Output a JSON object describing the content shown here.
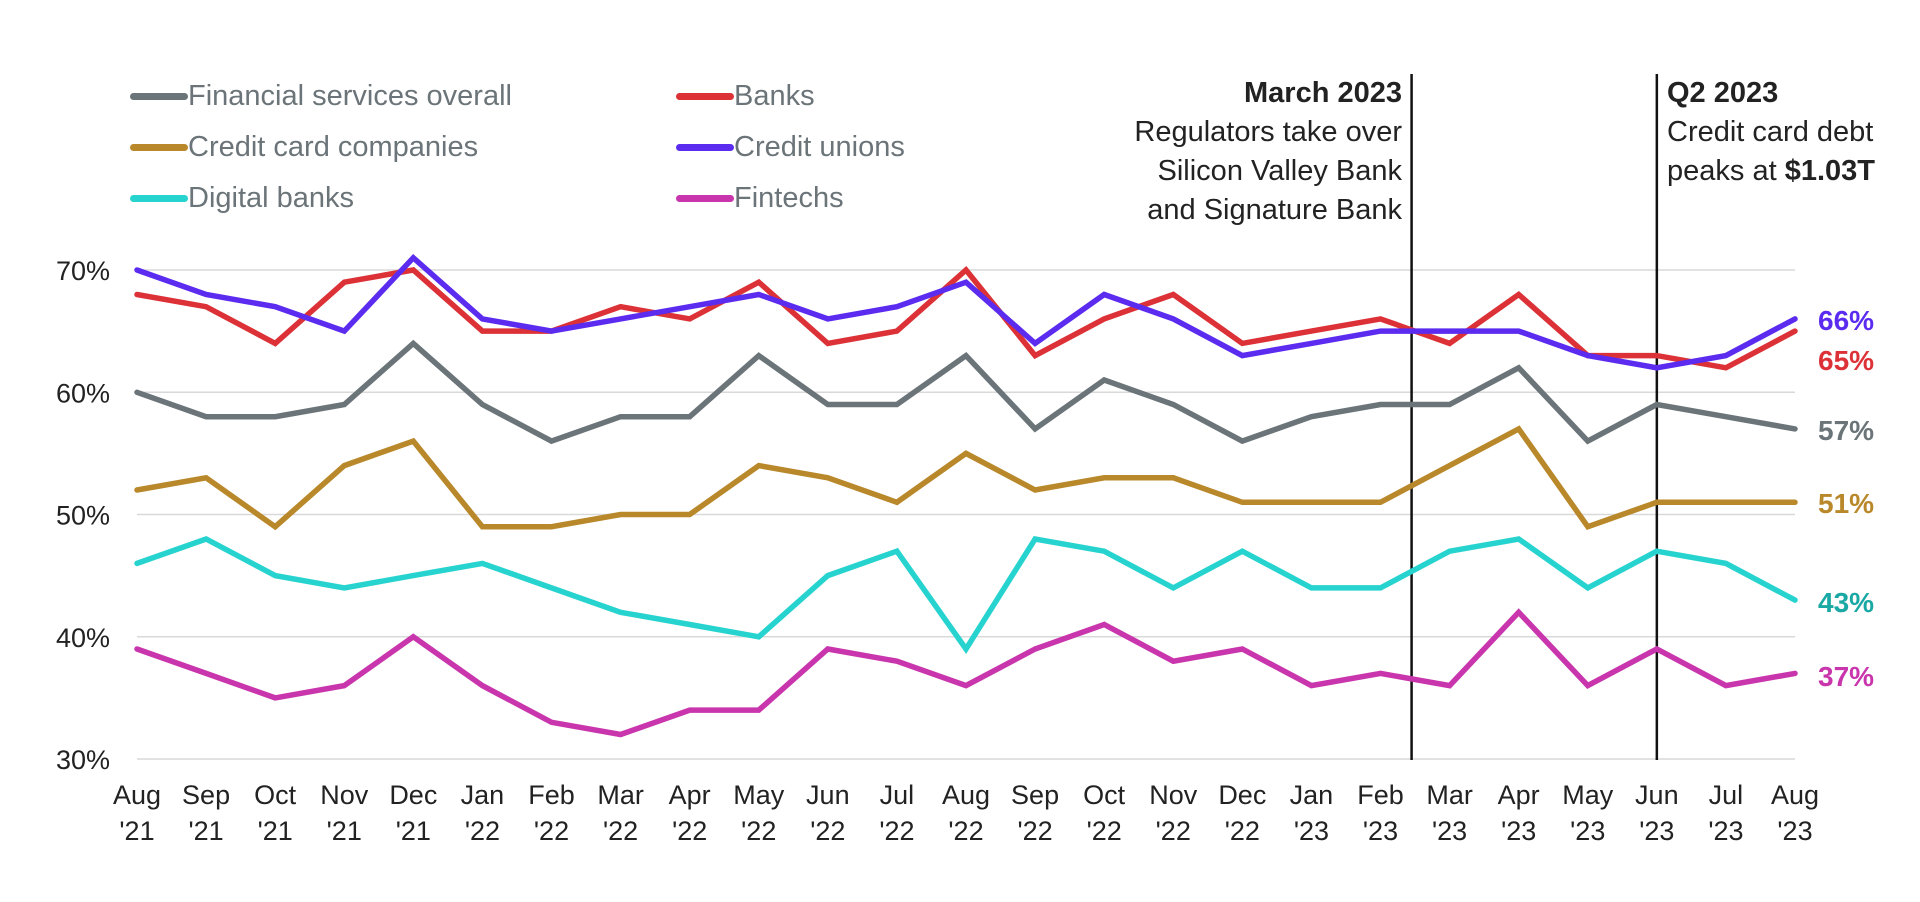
{
  "chart_data": {
    "type": "line",
    "x": [
      "Aug '21",
      "Sep '21",
      "Oct '21",
      "Nov '21",
      "Dec '21",
      "Jan '22",
      "Feb '22",
      "Mar '22",
      "Apr '22",
      "May '22",
      "Jun '22",
      "Jul '22",
      "Aug '22",
      "Sep '22",
      "Oct '22",
      "Nov '22",
      "Dec '22",
      "Jan '23",
      "Feb '23",
      "Mar '23",
      "Apr '23",
      "May '23",
      "Jun '23",
      "Jul '23",
      "Aug '23"
    ],
    "x_month": [
      "Aug",
      "Sep",
      "Oct",
      "Nov",
      "Dec",
      "Jan",
      "Feb",
      "Mar",
      "Apr",
      "May",
      "Jun",
      "Jul",
      "Aug",
      "Sep",
      "Oct",
      "Nov",
      "Dec",
      "Jan",
      "Feb",
      "Mar",
      "Apr",
      "May",
      "Jun",
      "Jul",
      "Aug"
    ],
    "x_year": [
      "'21",
      "'21",
      "'21",
      "'21",
      "'21",
      "'22",
      "'22",
      "'22",
      "'22",
      "'22",
      "'22",
      "'22",
      "'22",
      "'22",
      "'22",
      "'22",
      "'22",
      "'23",
      "'23",
      "'23",
      "'23",
      "'23",
      "'23",
      "'23",
      "'23"
    ],
    "ylim": [
      30,
      70
    ],
    "yticks": [
      30,
      40,
      50,
      60,
      70
    ],
    "ytick_labels": [
      "30%",
      "40%",
      "50%",
      "60%",
      "70%"
    ],
    "grid": true,
    "series": [
      {
        "name": "Financial services overall",
        "color": "#6b7478",
        "end_label": "57%",
        "values": [
          60,
          58,
          58,
          59,
          64,
          59,
          56,
          58,
          58,
          63,
          59,
          59,
          63,
          57,
          61,
          59,
          56,
          58,
          59,
          59,
          62,
          56,
          59,
          58,
          57
        ]
      },
      {
        "name": "Banks",
        "color": "#dc3237",
        "end_label": "65%",
        "values": [
          68,
          67,
          64,
          69,
          70,
          65,
          65,
          67,
          66,
          69,
          64,
          65,
          70,
          63,
          66,
          68,
          64,
          65,
          66,
          64,
          68,
          63,
          63,
          62,
          65
        ]
      },
      {
        "name": "Credit card companies",
        "color": "#b8882a",
        "end_label": "51%",
        "values": [
          52,
          53,
          49,
          54,
          56,
          49,
          49,
          50,
          50,
          54,
          53,
          51,
          55,
          52,
          53,
          53,
          51,
          51,
          51,
          54,
          57,
          49,
          51,
          51,
          51
        ]
      },
      {
        "name": "Credit unions",
        "color": "#5b2cf0",
        "end_label": "66%",
        "values": [
          70,
          68,
          67,
          65,
          71,
          66,
          65,
          66,
          67,
          68,
          66,
          67,
          69,
          64,
          68,
          66,
          63,
          64,
          65,
          65,
          65,
          63,
          62,
          63,
          66
        ]
      },
      {
        "name": "Digital banks",
        "color": "#27d3cf",
        "end_label": "43%",
        "end_label_color": "#1aa8a4",
        "values": [
          46,
          48,
          45,
          44,
          45,
          46,
          44,
          42,
          41,
          40,
          45,
          47,
          39,
          48,
          47,
          44,
          47,
          44,
          44,
          47,
          48,
          44,
          47,
          46,
          43
        ]
      },
      {
        "name": "Fintechs",
        "color": "#c935ac",
        "end_label": "37%",
        "values": [
          39,
          37,
          35,
          36,
          40,
          36,
          33,
          32,
          34,
          34,
          39,
          38,
          36,
          39,
          41,
          38,
          39,
          36,
          37,
          36,
          42,
          36,
          39,
          36,
          37
        ]
      }
    ],
    "annotations": [
      {
        "x_position": 18.45,
        "title": "March 2023",
        "lines": [
          "Regulators take over",
          "Silicon Valley Bank",
          "and Signature Bank"
        ],
        "align": "left-of-line"
      },
      {
        "x_position": 22.0,
        "title": "Q2 2023",
        "line1": "Credit card debt",
        "line2_prefix": "peaks at ",
        "line2_bold": "$1.03T",
        "align": "right-of-line"
      }
    ]
  }
}
